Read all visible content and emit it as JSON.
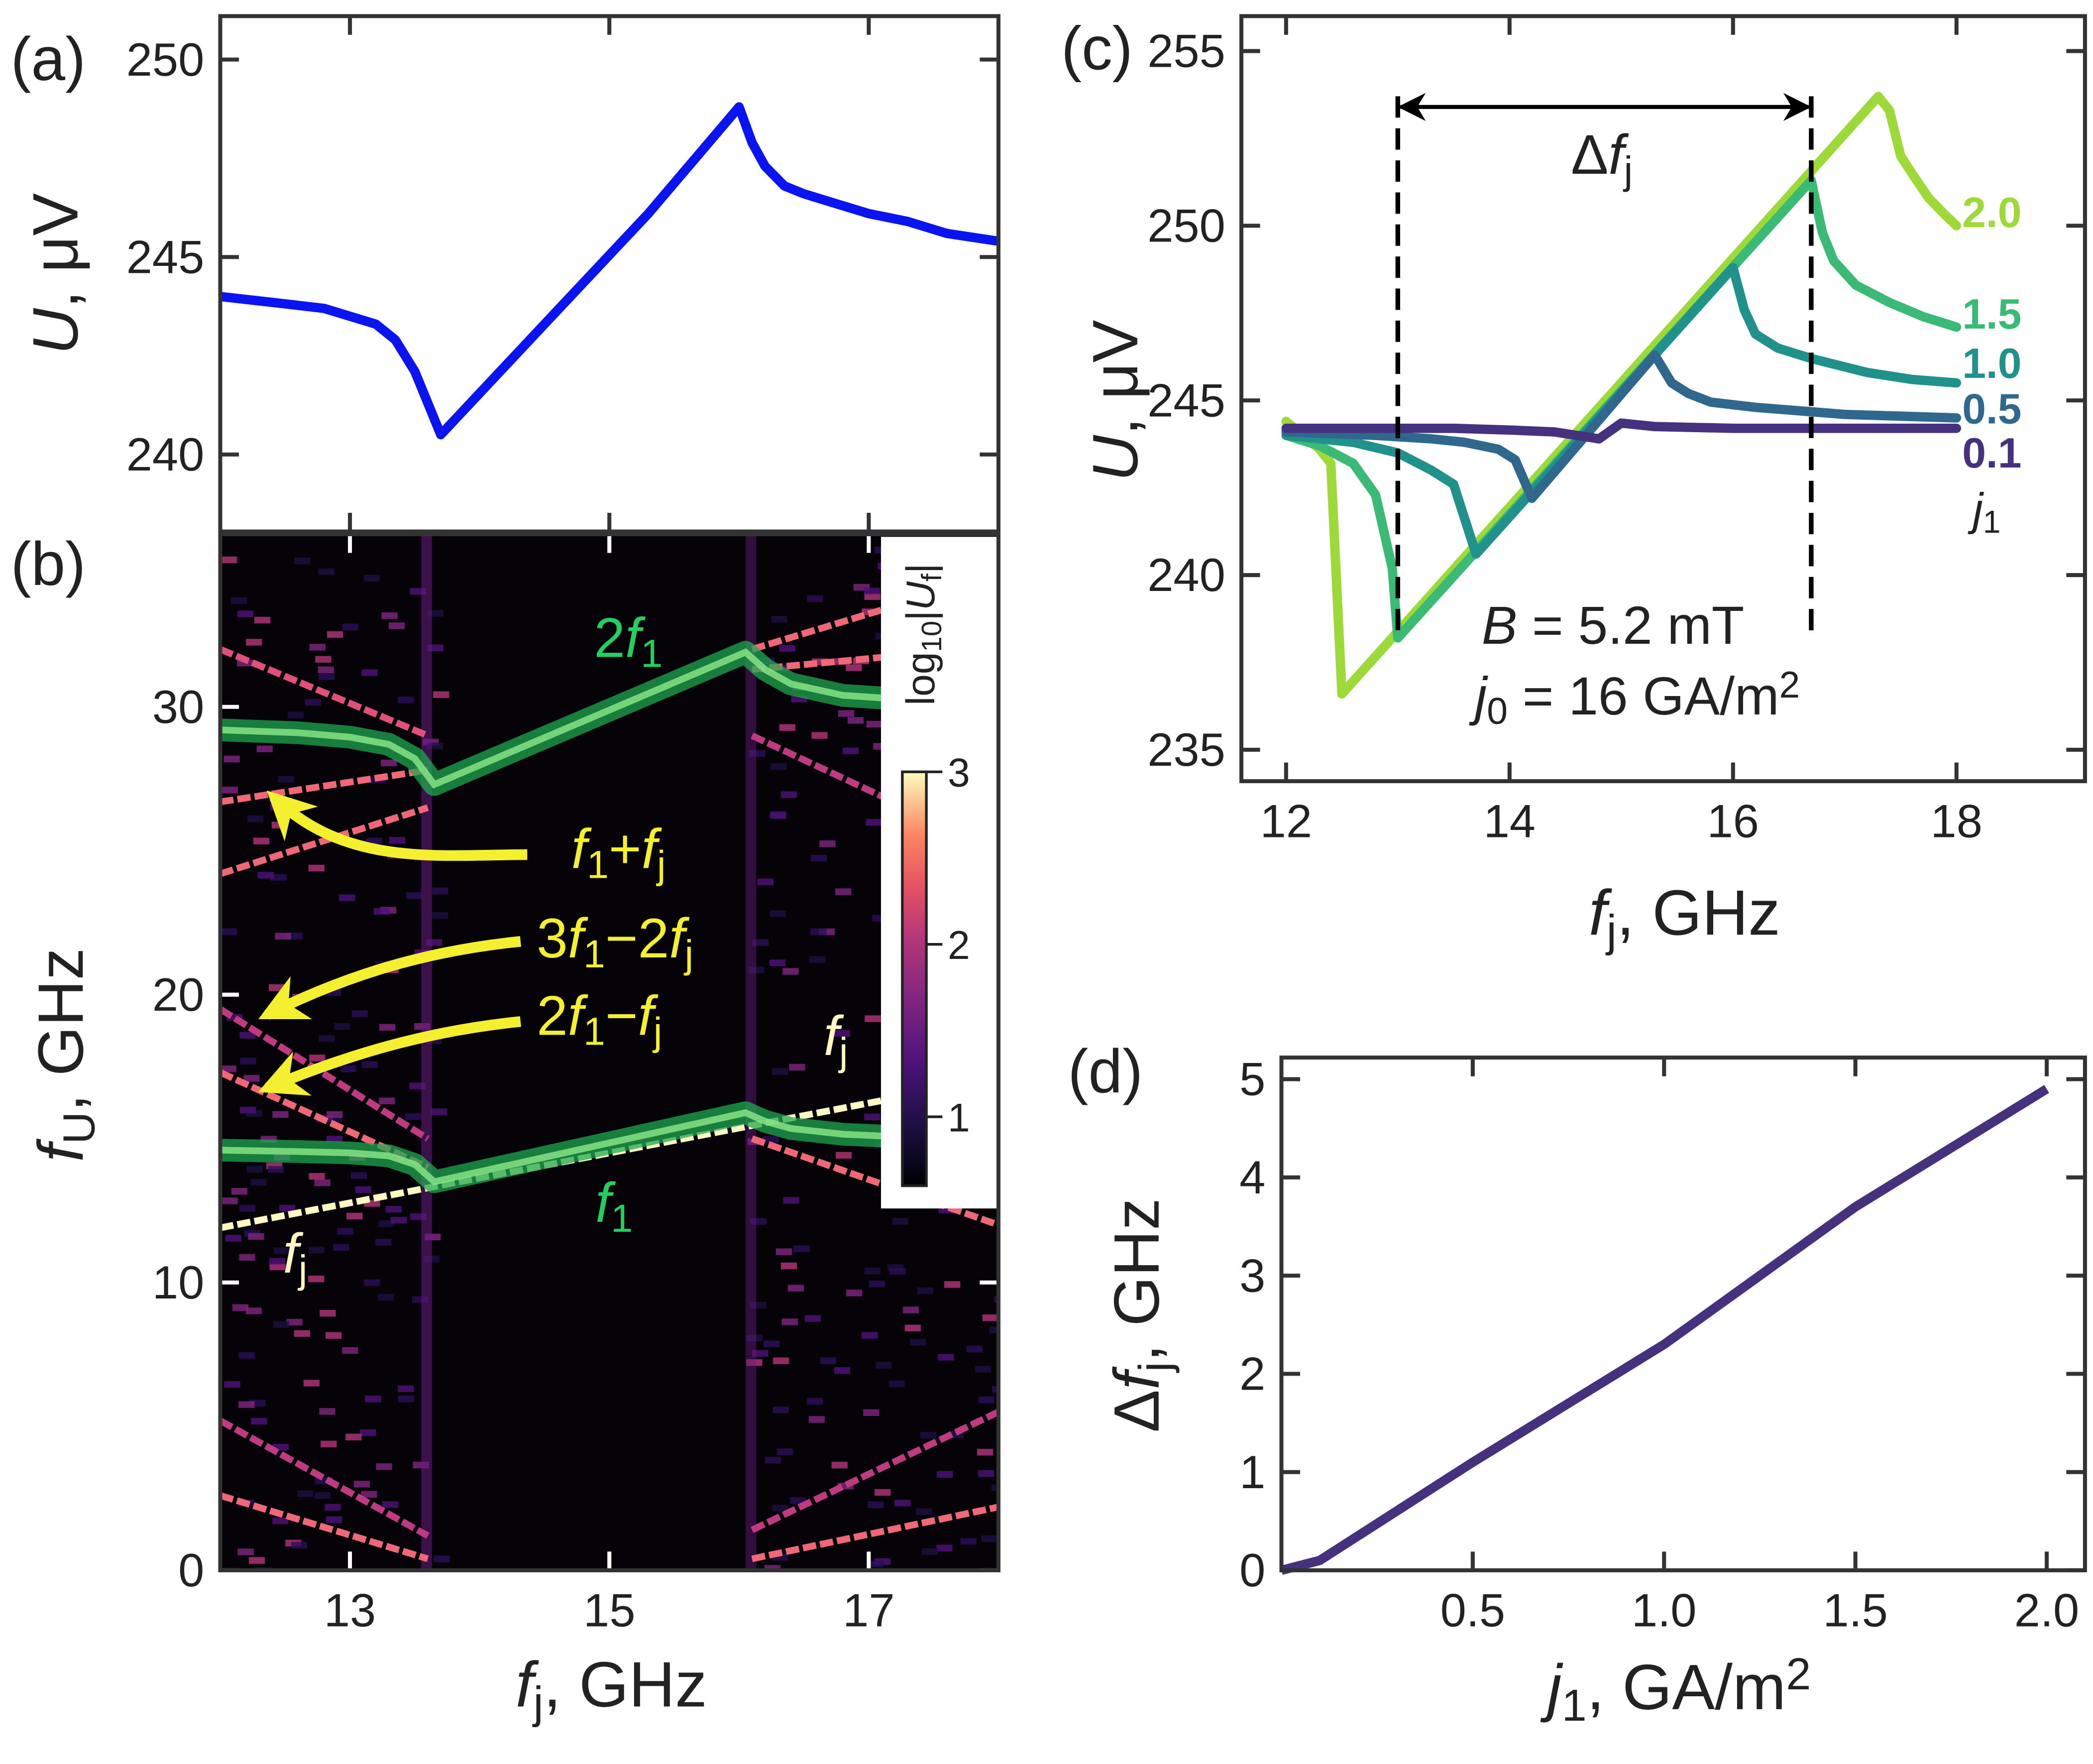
{
  "chart_data": [
    {
      "panel_label": "(a)",
      "type": "line",
      "xlim": [
        12,
        18
      ],
      "ylim": [
        238.05,
        251.1
      ],
      "xticks": [
        13,
        15,
        17
      ],
      "xtick_labels_shown": false,
      "yticks": [
        240,
        245,
        250
      ],
      "ylabel": [
        [
          "U",
          "i"
        ],
        [
          ", μV",
          ""
        ]
      ],
      "series": [
        {
          "color": "#0a14f0",
          "x": [
            12.0,
            12.4,
            12.8,
            13.0,
            13.2,
            13.35,
            13.5,
            13.7,
            14.5,
            15.3,
            16.0,
            16.1,
            16.2,
            16.35,
            16.5,
            16.8,
            17.0,
            17.3,
            17.6,
            18.0
          ],
          "y": [
            244.0,
            243.85,
            243.7,
            243.5,
            243.3,
            242.9,
            242.1,
            240.5,
            243.3,
            246.1,
            248.8,
            247.9,
            247.3,
            246.8,
            246.6,
            246.3,
            246.1,
            245.9,
            245.6,
            245.4
          ]
        }
      ]
    },
    {
      "panel_label": "(b)",
      "type": "heatmap",
      "xlim": [
        12,
        18
      ],
      "ylim": [
        0,
        36
      ],
      "xticks": [
        13,
        15,
        17
      ],
      "yticks": [
        0,
        10,
        20,
        30
      ],
      "xlabel": [
        [
          "f",
          "i"
        ],
        [
          "j",
          "s"
        ],
        [
          ", GHz",
          ""
        ]
      ],
      "ylabel": [
        [
          "f",
          "i"
        ],
        [
          "U",
          "s"
        ],
        [
          ", GHz",
          ""
        ]
      ],
      "colorbar": {
        "label": [
          [
            "log",
            ""
          ],
          [
            "10",
            "s"
          ],
          [
            "|",
            ""
          ],
          [
            "U",
            "i"
          ],
          [
            "f",
            "s"
          ],
          [
            "|",
            ""
          ]
        ],
        "range": [
          0.6,
          3
        ],
        "ticks": [
          1,
          2,
          3
        ],
        "colormap": "magma"
      },
      "ridges": [
        {
          "name_shown": "f_j",
          "color": "#fff8c0",
          "x": [
            12,
            18
          ],
          "y": [
            11.9,
            17.1
          ]
        },
        {
          "color": "#f06878",
          "x": [
            12,
            13.6
          ],
          "y": [
            26.7,
            27.8
          ]
        },
        {
          "color": "#f06878",
          "x": [
            12,
            13.6
          ],
          "y": [
            24.2,
            26.5
          ]
        },
        {
          "color": "#e0507a",
          "x": [
            12,
            13.6
          ],
          "y": [
            32.0,
            29.0
          ]
        },
        {
          "color": "#c03a80",
          "x": [
            12,
            13.6
          ],
          "y": [
            19.5,
            15.0
          ]
        },
        {
          "color": "#f06878",
          "x": [
            12,
            13.6
          ],
          "y": [
            17.3,
            14.0
          ]
        },
        {
          "color": "#f06878",
          "x": [
            12,
            13.6
          ],
          "y": [
            2.6,
            0.4
          ]
        },
        {
          "color": "#c03a80",
          "x": [
            12,
            13.6
          ],
          "y": [
            5.2,
            1.2
          ]
        },
        {
          "color": "#f06878",
          "x": [
            16.1,
            18
          ],
          "y": [
            32.0,
            34.6
          ]
        },
        {
          "color": "#f06878",
          "x": [
            16.1,
            18
          ],
          "y": [
            31.3,
            32.1
          ]
        },
        {
          "color": "#c03a80",
          "x": [
            16.1,
            18
          ],
          "y": [
            29.0,
            25.0
          ]
        },
        {
          "color": "#f06878",
          "x": [
            16.1,
            18
          ],
          "y": [
            15.0,
            12.0
          ]
        },
        {
          "color": "#f06878",
          "x": [
            16.1,
            18
          ],
          "y": [
            0.4,
            2.2
          ]
        },
        {
          "color": "#c03a80",
          "x": [
            16.1,
            18
          ],
          "y": [
            1.4,
            5.5
          ]
        }
      ],
      "highlight_series": [
        {
          "color": "#1fa850",
          "x": [
            12.0,
            12.6,
            13.0,
            13.3,
            13.5,
            13.6,
            13.65,
            16.05,
            16.2,
            16.4,
            16.8,
            17.3,
            18.0
          ],
          "y": [
            14.6,
            14.55,
            14.5,
            14.4,
            14.1,
            13.7,
            13.5,
            15.9,
            15.6,
            15.35,
            15.15,
            15.05,
            15.0
          ]
        },
        {
          "color": "#1fa850",
          "x": [
            12.0,
            12.6,
            13.0,
            13.3,
            13.5,
            13.6,
            13.65,
            16.05,
            16.2,
            16.4,
            16.8,
            17.3,
            18.0
          ],
          "y": [
            29.2,
            29.1,
            28.95,
            28.7,
            28.2,
            27.6,
            27.3,
            31.9,
            31.3,
            30.8,
            30.4,
            30.25,
            30.2
          ]
        }
      ],
      "annotations": [
        {
          "text": [
            [
              "2",
              ""
            ],
            [
              "f",
              "i"
            ],
            [
              "1",
              "s"
            ]
          ],
          "color": "#22d060"
        },
        {
          "text": [
            [
              "f",
              "i"
            ],
            [
              "1",
              "s"
            ]
          ],
          "color": "#22d060"
        },
        {
          "text": [
            [
              "f",
              "i"
            ],
            [
              "1",
              "s"
            ],
            [
              "+",
              ""
            ],
            [
              "f",
              "i"
            ],
            [
              "j",
              "s"
            ]
          ],
          "color": "#f4f030"
        },
        {
          "text": [
            [
              "3",
              ""
            ],
            [
              "f",
              "i"
            ],
            [
              "1",
              "s"
            ],
            [
              "−2",
              ""
            ],
            [
              "f",
              "i"
            ],
            [
              "j",
              "s"
            ]
          ],
          "color": "#f4f030"
        },
        {
          "text": [
            [
              "2",
              ""
            ],
            [
              "f",
              "i"
            ],
            [
              "1",
              "s"
            ],
            [
              "−",
              ""
            ],
            [
              "f",
              "i"
            ],
            [
              "j",
              "s"
            ]
          ],
          "color": "#f4f030"
        },
        {
          "text": [
            [
              "f",
              "i"
            ],
            [
              "j",
              "s"
            ]
          ],
          "color": "#fff8c0"
        },
        {
          "text": [
            [
              "f",
              "i"
            ],
            [
              "j",
              "s"
            ]
          ],
          "color": "#fff8c0"
        }
      ]
    },
    {
      "panel_label": "(c)",
      "type": "line",
      "xlim": [
        11.6,
        19.15
      ],
      "ylim": [
        234.1,
        256.0
      ],
      "xticks": [
        12,
        14,
        16,
        18
      ],
      "yticks": [
        235,
        240,
        245,
        250,
        255
      ],
      "xlabel": [
        [
          "f",
          "i"
        ],
        [
          "j",
          "s"
        ],
        [
          ", GHz",
          ""
        ]
      ],
      "ylabel": [
        [
          "U",
          "i"
        ],
        [
          ", μV",
          ""
        ]
      ],
      "legend_title": [
        [
          "j",
          "i"
        ],
        [
          "1",
          "s"
        ]
      ],
      "series": [
        {
          "name": "0.1",
          "color": "#46317e",
          "x": [
            12,
            13,
            13.5,
            14,
            14.4,
            14.8,
            15.0,
            15.3,
            16,
            17,
            18
          ],
          "y": [
            244.2,
            244.2,
            244.2,
            244.15,
            244.1,
            243.9,
            244.35,
            244.25,
            244.2,
            244.2,
            244.2
          ]
        },
        {
          "name": "0.5",
          "color": "#30688d",
          "x": [
            12,
            12.8,
            13.3,
            13.6,
            13.9,
            14.05,
            14.2,
            15.3,
            15.45,
            15.6,
            15.8,
            16.2,
            17,
            18
          ],
          "y": [
            244.1,
            244.0,
            243.9,
            243.8,
            243.6,
            243.3,
            242.2,
            246.3,
            245.5,
            245.2,
            244.95,
            244.8,
            244.6,
            244.5
          ],
          "x_": []
        },
        {
          "name": "1.0",
          "color": "#21918c",
          "x": [
            12,
            12.6,
            13.0,
            13.3,
            13.5,
            13.6,
            13.7,
            16.0,
            16.1,
            16.2,
            16.4,
            16.7,
            17.2,
            17.6,
            18
          ],
          "y": [
            244.0,
            243.8,
            243.5,
            243.0,
            242.6,
            241.6,
            240.6,
            248.8,
            247.6,
            246.9,
            246.5,
            246.2,
            245.8,
            245.6,
            245.5
          ]
        },
        {
          "name": "1.5",
          "color": "#3bba76",
          "x": [
            12,
            12.3,
            12.6,
            12.8,
            12.95,
            13.0,
            16.7,
            16.8,
            16.9,
            17.1,
            17.4,
            17.7,
            18
          ],
          "y": [
            244.0,
            243.7,
            243.2,
            242.3,
            240.2,
            238.2,
            251.3,
            249.8,
            249.0,
            248.3,
            247.8,
            247.4,
            247.1
          ]
        },
        {
          "name": "2.0",
          "color": "#9ed93a",
          "x": [
            12,
            12.3,
            12.4,
            12.5,
            17.3,
            17.4,
            17.5,
            17.6,
            17.75,
            17.9,
            18
          ],
          "y": [
            244.4,
            243.6,
            243.2,
            236.6,
            253.7,
            253.3,
            252.0,
            251.5,
            250.8,
            250.3,
            250.0
          ]
        }
      ],
      "markers": {
        "dashed_x": [
          13.0,
          16.7
        ],
        "arrow_y": 253.4,
        "arrow_label": [
          [
            "Δ",
            ""
          ],
          [
            "f",
            "i"
          ],
          [
            "j",
            "s"
          ]
        ]
      },
      "annotations": [
        {
          "text": [
            [
              "B",
              "i"
            ],
            [
              " = 5.2 mT",
              ""
            ]
          ]
        },
        {
          "text": [
            [
              "j",
              "i"
            ],
            [
              "0",
              "s"
            ],
            [
              " = 16 GA/m",
              ""
            ],
            [
              "2",
              "sup"
            ]
          ]
        }
      ]
    },
    {
      "panel_label": "(d)",
      "type": "line",
      "xlim": [
        0,
        2.1
      ],
      "ylim": [
        0,
        5.22
      ],
      "xticks": [
        0.5,
        1.0,
        1.5,
        2.0
      ],
      "xtick_labels": [
        "0.5",
        "1.0",
        "1.5",
        "2.0"
      ],
      "yticks": [
        0,
        1,
        2,
        3,
        4,
        5
      ],
      "xlabel": [
        [
          "j",
          "i"
        ],
        [
          "1",
          "s"
        ],
        [
          ", GA/m",
          ""
        ],
        [
          "2",
          "sup"
        ]
      ],
      "ylabel": [
        [
          "Δ",
          ""
        ],
        [
          "f",
          "i"
        ],
        [
          "j",
          "s"
        ],
        [
          ", GHz",
          ""
        ]
      ],
      "series": [
        {
          "color": "#46317e",
          "x": [
            0,
            0.1,
            0.5,
            1.0,
            1.5,
            2.0
          ],
          "y": [
            0,
            0.1,
            1.1,
            2.3,
            3.7,
            4.9
          ]
        }
      ]
    }
  ]
}
